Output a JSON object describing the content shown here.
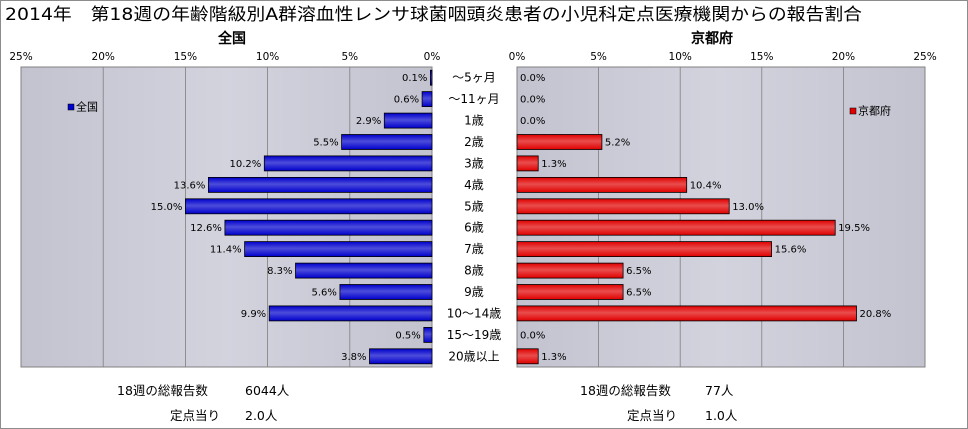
{
  "title": "2014年　第18週の年齢階級別A群溶血性レンサ球菌咽頭炎患者の小児科定点医療機関からの報告割合",
  "chart_data": {
    "type": "bar",
    "orientation": "horizontal",
    "categories": [
      "～5ヶ月",
      "～11ヶ月",
      "1歳",
      "2歳",
      "3歳",
      "4歳",
      "5歳",
      "6歳",
      "7歳",
      "8歳",
      "9歳",
      "10～14歳",
      "15～19歳",
      "20歳以上"
    ],
    "xlim": [
      0,
      25
    ],
    "grid": true,
    "series": [
      {
        "name": "全国",
        "panel_title": "全国",
        "side": "left",
        "values": [
          0.1,
          0.6,
          2.9,
          5.5,
          10.2,
          13.6,
          15.0,
          12.6,
          11.4,
          8.3,
          5.6,
          9.9,
          0.5,
          3.8
        ],
        "data_labels": [
          "0.1%",
          "0.6%",
          "2.9%",
          "5.5%",
          "10.2%",
          "13.6%",
          "15.0%",
          "12.6%",
          "11.4%",
          "8.3%",
          "5.6%",
          "9.9%",
          "0.5%",
          "3.8%"
        ],
        "xticks": [
          "25%",
          "20%",
          "15%",
          "10%",
          "5%",
          "0%"
        ],
        "legend": "top-left",
        "color": "#0000cc"
      },
      {
        "name": "京都府",
        "panel_title": "京都府",
        "side": "right",
        "values": [
          0.0,
          0.0,
          0.0,
          5.2,
          1.3,
          10.4,
          13.0,
          19.5,
          15.6,
          6.5,
          6.5,
          20.8,
          0.0,
          1.3
        ],
        "data_labels": [
          "0.0%",
          "0.0%",
          "0.0%",
          "5.2%",
          "1.3%",
          "10.4%",
          "13.0%",
          "19.5%",
          "15.6%",
          "6.5%",
          "6.5%",
          "20.8%",
          "0.0%",
          "1.3%"
        ],
        "xticks": [
          "0%",
          "5%",
          "10%",
          "15%",
          "20%",
          "25%"
        ],
        "legend": "top-right",
        "color": "#e00000"
      }
    ]
  },
  "summary": [
    {
      "total_label": "18週の総報告数",
      "total_value": "6044人",
      "per_site_label": "定点当り",
      "per_site_value": "2.0人"
    },
    {
      "total_label": "18週の総報告数",
      "total_value": "77人",
      "per_site_label": "定点当り",
      "per_site_value": "1.0人"
    }
  ]
}
